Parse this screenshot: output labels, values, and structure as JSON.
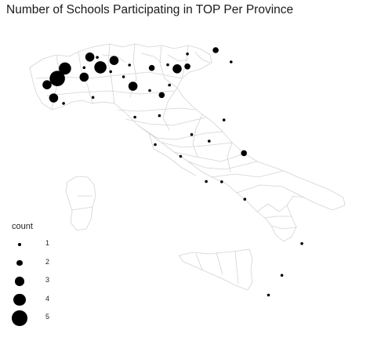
{
  "title": "Number of Schools Participating in TOP Per Province",
  "legend": {
    "title": "count",
    "items": [
      {
        "label": "1",
        "value": 1
      },
      {
        "label": "2",
        "value": 2
      },
      {
        "label": "3",
        "value": 3
      },
      {
        "label": "4",
        "value": 4
      },
      {
        "label": "5",
        "value": 5
      }
    ]
  },
  "colors": {
    "point": "#000000",
    "border": "#d3d3d3",
    "background": "#ffffff"
  },
  "map": {
    "region": "Italy",
    "points": [
      {
        "lon": 7.68,
        "lat": 45.07,
        "count": 5
      },
      {
        "lon": 7.95,
        "lat": 45.42,
        "count": 4
      },
      {
        "lon": 8.82,
        "lat": 45.82,
        "count": 3
      },
      {
        "lon": 9.19,
        "lat": 45.46,
        "count": 4
      },
      {
        "lon": 9.08,
        "lat": 45.81,
        "count": 1
      },
      {
        "lon": 8.62,
        "lat": 45.45,
        "count": 1
      },
      {
        "lon": 8.62,
        "lat": 45.12,
        "count": 3
      },
      {
        "lon": 7.32,
        "lat": 44.85,
        "count": 3
      },
      {
        "lon": 7.55,
        "lat": 44.39,
        "count": 3
      },
      {
        "lon": 7.9,
        "lat": 44.2,
        "count": 1
      },
      {
        "lon": 8.93,
        "lat": 44.41,
        "count": 1
      },
      {
        "lon": 9.67,
        "lat": 45.7,
        "count": 3
      },
      {
        "lon": 10.21,
        "lat": 45.54,
        "count": 1
      },
      {
        "lon": 9.55,
        "lat": 45.31,
        "count": 1
      },
      {
        "lon": 10.0,
        "lat": 45.13,
        "count": 1
      },
      {
        "lon": 10.33,
        "lat": 44.8,
        "count": 3
      },
      {
        "lon": 10.92,
        "lat": 44.65,
        "count": 1
      },
      {
        "lon": 11.34,
        "lat": 44.49,
        "count": 2
      },
      {
        "lon": 10.99,
        "lat": 45.44,
        "count": 2
      },
      {
        "lon": 11.55,
        "lat": 45.55,
        "count": 1
      },
      {
        "lon": 11.88,
        "lat": 45.41,
        "count": 3
      },
      {
        "lon": 12.24,
        "lat": 45.49,
        "count": 2
      },
      {
        "lon": 12.24,
        "lat": 45.93,
        "count": 1
      },
      {
        "lon": 13.23,
        "lat": 46.06,
        "count": 2
      },
      {
        "lon": 13.77,
        "lat": 45.65,
        "count": 1
      },
      {
        "lon": 11.61,
        "lat": 44.84,
        "count": 1
      },
      {
        "lon": 10.4,
        "lat": 43.72,
        "count": 1
      },
      {
        "lon": 11.26,
        "lat": 43.77,
        "count": 1
      },
      {
        "lon": 11.11,
        "lat": 42.76,
        "count": 1
      },
      {
        "lon": 12.39,
        "lat": 43.11,
        "count": 1
      },
      {
        "lon": 13.52,
        "lat": 43.62,
        "count": 1
      },
      {
        "lon": 13.0,
        "lat": 42.88,
        "count": 1
      },
      {
        "lon": 12.0,
        "lat": 42.35,
        "count": 1
      },
      {
        "lon": 14.22,
        "lat": 42.46,
        "count": 2
      },
      {
        "lon": 12.9,
        "lat": 41.47,
        "count": 1
      },
      {
        "lon": 13.44,
        "lat": 41.46,
        "count": 1
      },
      {
        "lon": 14.25,
        "lat": 40.85,
        "count": 1
      },
      {
        "lon": 16.25,
        "lat": 39.3,
        "count": 1
      },
      {
        "lon": 15.55,
        "lat": 38.19,
        "count": 1
      },
      {
        "lon": 15.08,
        "lat": 37.5,
        "count": 1
      }
    ]
  }
}
